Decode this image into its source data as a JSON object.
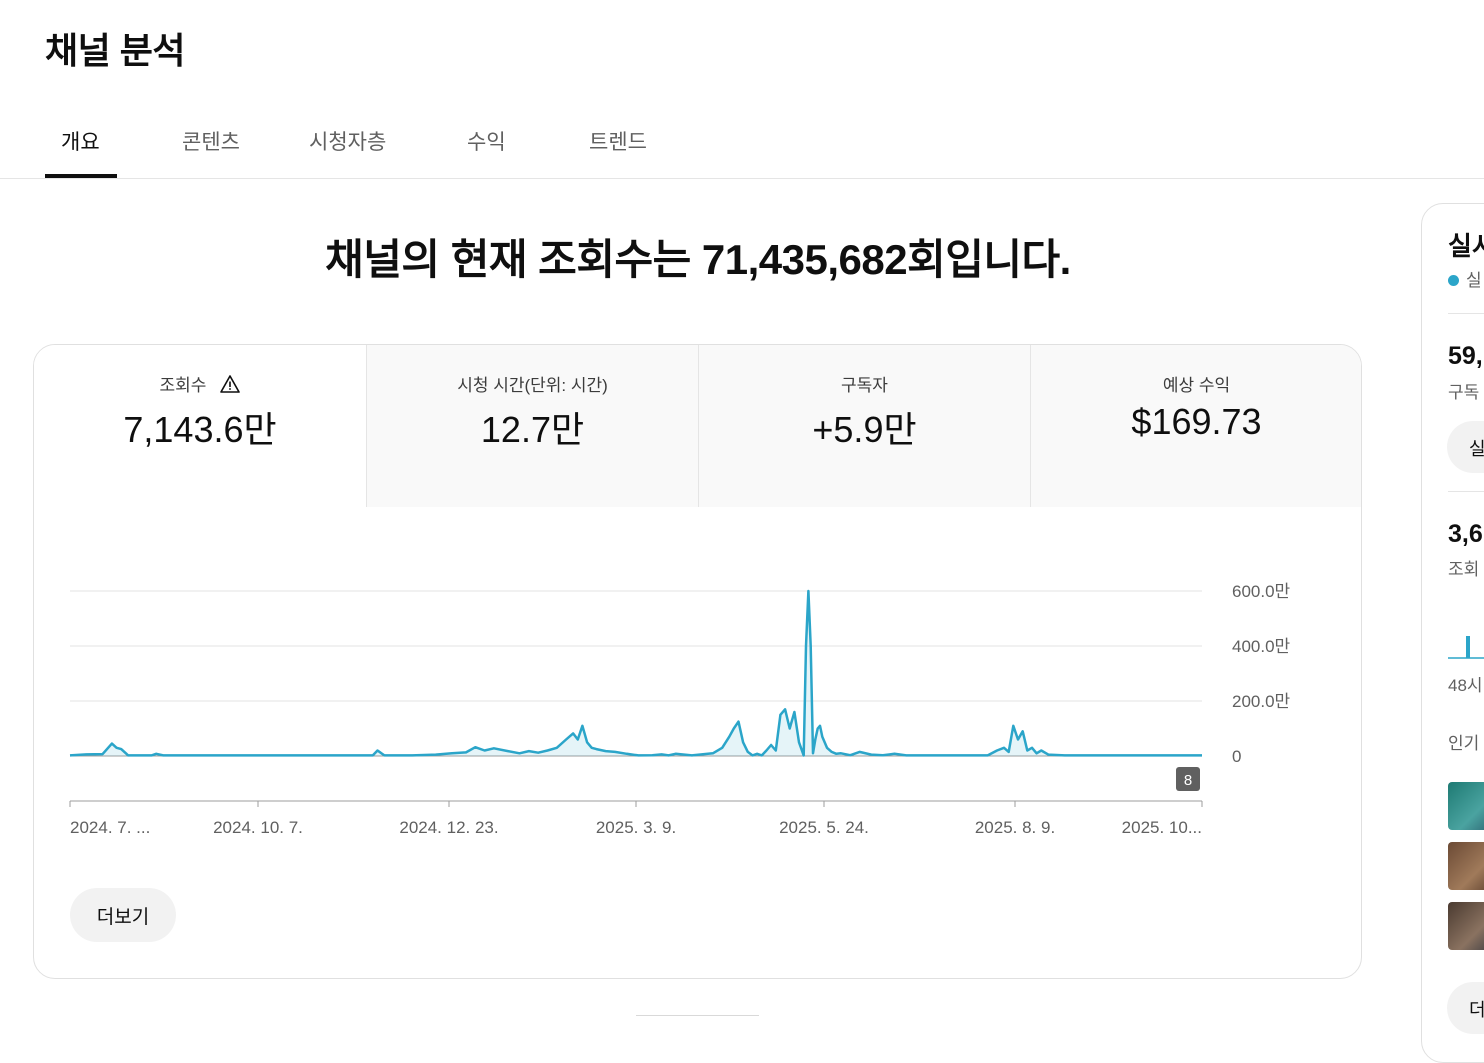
{
  "page": {
    "title": "채널 분석"
  },
  "tabs": [
    {
      "label": "개요",
      "active": true
    },
    {
      "label": "콘텐츠"
    },
    {
      "label": "시청자층"
    },
    {
      "label": "수익"
    },
    {
      "label": "트렌드"
    }
  ],
  "headline": "채널의 현재 조회수는 71,435,682회입니다.",
  "metrics": [
    {
      "label": "조회수",
      "value": "7,143.6만",
      "warning_icon": "warning-triangle-icon"
    },
    {
      "label": "시청 시간(단위: 시간)",
      "value": "12.7만"
    },
    {
      "label": "구독자",
      "value": "+5.9만"
    },
    {
      "label": "예상 수익",
      "value": "$169.73"
    }
  ],
  "chart_data": {
    "type": "line",
    "ylabel": "",
    "ytick_labels": [
      "600.0만",
      "400.0만",
      "200.0만",
      "0"
    ],
    "ytick_values": [
      6000000,
      4000000,
      2000000,
      0
    ],
    "ylim": [
      0,
      6000000
    ],
    "xtick_labels": [
      "2024. 7. ...",
      "2024. 10. 7.",
      "2024. 12. 23.",
      "2025. 3. 9.",
      "2025. 5. 24.",
      "2025. 8. 9.",
      "2025. 10..."
    ],
    "x_range": [
      "2024-07-01",
      "2025-10-30"
    ],
    "marker_badge": "8",
    "color": "#2ba5c9",
    "series": [
      {
        "x": [
          "2024-07-01",
          "2024-07-08",
          "2024-07-15",
          "2024-07-19",
          "2024-07-21",
          "2024-07-23",
          "2024-07-26",
          "2024-08-05",
          "2024-08-07",
          "2024-08-10",
          "2024-09-15",
          "2024-11-08",
          "2024-11-10",
          "2024-11-13",
          "2024-11-25",
          "2024-12-05",
          "2024-12-12",
          "2024-12-18",
          "2024-12-22",
          "2024-12-26",
          "2024-12-30",
          "2025-01-05",
          "2025-01-10",
          "2025-01-14",
          "2025-01-18",
          "2025-01-22",
          "2025-01-26",
          "2025-01-30",
          "2025-02-02",
          "2025-02-04",
          "2025-02-06",
          "2025-02-08",
          "2025-02-10",
          "2025-02-12",
          "2025-02-16",
          "2025-02-20",
          "2025-02-25",
          "2025-03-02",
          "2025-03-08",
          "2025-03-12",
          "2025-03-15",
          "2025-03-18",
          "2025-03-25",
          "2025-04-03",
          "2025-04-07",
          "2025-04-10",
          "2025-04-12",
          "2025-04-14",
          "2025-04-16",
          "2025-04-18",
          "2025-04-20",
          "2025-04-22",
          "2025-04-24",
          "2025-04-26",
          "2025-04-28",
          "2025-04-30",
          "2025-05-02",
          "2025-05-04",
          "2025-05-06",
          "2025-05-08",
          "2025-05-10",
          "2025-05-12",
          "2025-05-13",
          "2025-05-14",
          "2025-05-15",
          "2025-05-16",
          "2025-05-17",
          "2025-05-18",
          "2025-05-19",
          "2025-05-20",
          "2025-05-22",
          "2025-05-24",
          "2025-05-26",
          "2025-05-28",
          "2025-06-01",
          "2025-06-05",
          "2025-06-10",
          "2025-06-15",
          "2025-06-20",
          "2025-06-25",
          "2025-07-05",
          "2025-07-15",
          "2025-07-25",
          "2025-07-30",
          "2025-08-03",
          "2025-08-06",
          "2025-08-08",
          "2025-08-10",
          "2025-08-12",
          "2025-08-14",
          "2025-08-16",
          "2025-08-18",
          "2025-08-20",
          "2025-08-22",
          "2025-08-25",
          "2025-09-01",
          "2025-10-30"
        ],
        "y": [
          20000,
          60000,
          70000,
          450000,
          300000,
          250000,
          20000,
          20000,
          80000,
          20000,
          20000,
          20000,
          200000,
          20000,
          20000,
          50000,
          100000,
          130000,
          320000,
          200000,
          280000,
          180000,
          100000,
          180000,
          120000,
          200000,
          300000,
          600000,
          820000,
          600000,
          1100000,
          500000,
          300000,
          250000,
          180000,
          150000,
          80000,
          20000,
          30000,
          60000,
          20000,
          80000,
          20000,
          100000,
          300000,
          700000,
          1000000,
          1250000,
          500000,
          150000,
          20000,
          80000,
          20000,
          200000,
          400000,
          200000,
          1500000,
          1700000,
          1000000,
          1600000,
          500000,
          20000,
          4000000,
          6000000,
          4000000,
          100000,
          600000,
          1000000,
          1100000,
          700000,
          300000,
          150000,
          80000,
          100000,
          30000,
          150000,
          50000,
          30000,
          80000,
          20000,
          20000,
          20000,
          20000,
          20000,
          200000,
          300000,
          150000,
          1100000,
          600000,
          900000,
          200000,
          300000,
          100000,
          200000,
          50000,
          20000,
          20000
        ]
      }
    ]
  },
  "more_button": {
    "label": "더보기"
  },
  "sidebar": {
    "title": "실시",
    "live_label": "실",
    "subscribers_value": "59,",
    "subscribers_label": "구독",
    "button1": "실",
    "views_value": "3,6",
    "views_label": "조회",
    "mini_caption": "48시",
    "popular_label": "인기",
    "more_label": "더"
  }
}
